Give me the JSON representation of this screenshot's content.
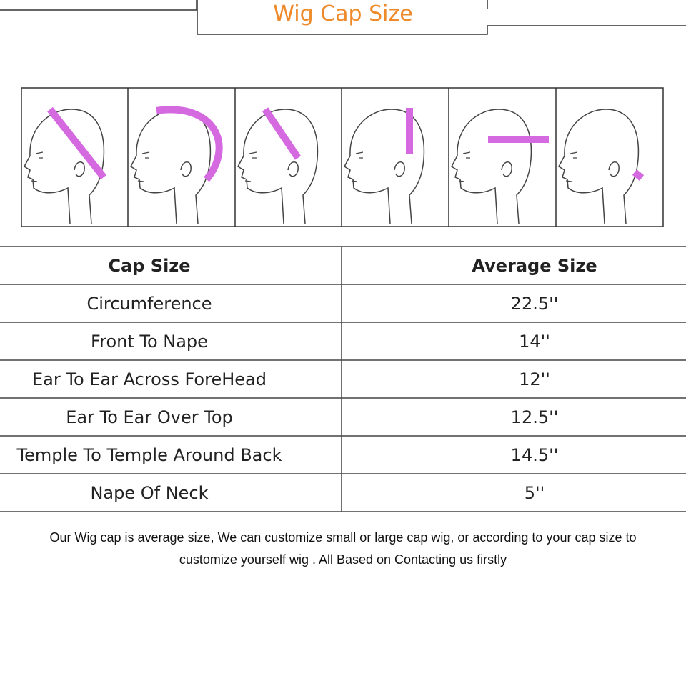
{
  "header": {
    "title": "Wig Cap Size"
  },
  "table": {
    "columns": [
      "Cap Size",
      "Average Size"
    ],
    "rows": [
      [
        "Circumference",
        "22.5''"
      ],
      [
        "Front To Nape",
        "14''"
      ],
      [
        "Ear To Ear Across ForeHead",
        "12''"
      ],
      [
        "Ear To Ear Over Top",
        "12.5''"
      ],
      [
        "Temple To Temple Around Back",
        "14.5''"
      ],
      [
        "Nape Of Neck",
        "5''"
      ]
    ]
  },
  "note": {
    "lines": [
      "Our Wig cap is average size, We can customize small or large cap wig, or according to your cap size to",
      "customize yourself wig . All Based on Contacting us firstly"
    ]
  }
}
